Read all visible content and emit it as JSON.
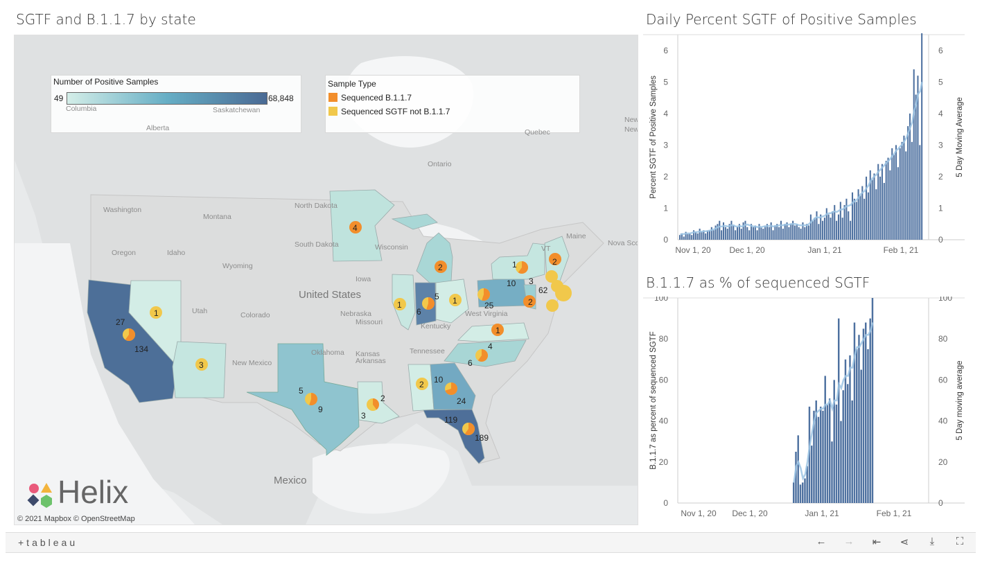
{
  "titles": {
    "map": "SGTF and B.1.1.7 by state",
    "chart1": "Daily Percent SGTF of Positive Samples",
    "chart2": "B.1.1.7 as % of sequenced SGTF"
  },
  "map": {
    "color_legend": {
      "title": "Number of Positive Samples",
      "min": "49",
      "max": "68,848",
      "color_min": "#d4eee8",
      "color_max": "#4a6a94"
    },
    "sample_legend": {
      "title": "Sample Type",
      "items": [
        {
          "label": "Sequenced B.1.1.7",
          "color": "#f28e2b"
        },
        {
          "label": "Sequenced SGTF not B.1.1.7",
          "color": "#f1c84b"
        }
      ]
    },
    "attribution": "© 2021 Mapbox  © OpenStreetMap",
    "brand": "Helix",
    "region_labels": [
      "Washington",
      "Oregon",
      "Idaho",
      "Montana",
      "Wyoming",
      "Utah",
      "Colorado",
      "North Dakota",
      "South Dakota",
      "Nebraska",
      "Iowa",
      "Missouri",
      "Kansas",
      "Oklahoma",
      "Arkansas",
      "Tennessee",
      "Kentucky",
      "West Virginia",
      "Wisconsin",
      "Ontario",
      "Quebec",
      "Alberta",
      "Saskatchewan",
      "Columbia",
      "Maine",
      "Nova Sco",
      "New",
      "Newfo",
      "VT",
      "New Mexico",
      "Mexico",
      "United States"
    ],
    "pie_labels": [
      {
        "text": "1"
      },
      {
        "text": "27"
      },
      {
        "text": "134"
      },
      {
        "text": "3"
      },
      {
        "text": "4"
      },
      {
        "text": "5"
      },
      {
        "text": "9"
      },
      {
        "text": "2"
      },
      {
        "text": "3"
      },
      {
        "text": "1"
      },
      {
        "text": "5"
      },
      {
        "text": "6"
      },
      {
        "text": "1"
      },
      {
        "text": "2"
      },
      {
        "text": "10"
      },
      {
        "text": "25"
      },
      {
        "text": "1"
      },
      {
        "text": "3"
      },
      {
        "text": "2"
      },
      {
        "text": "62"
      },
      {
        "text": "2"
      },
      {
        "text": "1"
      },
      {
        "text": "4"
      },
      {
        "text": "6"
      },
      {
        "text": "2"
      },
      {
        "text": "10"
      },
      {
        "text": "24"
      },
      {
        "text": "119"
      },
      {
        "text": "189"
      }
    ]
  },
  "chart_data": [
    {
      "type": "bar",
      "title": "Daily Percent SGTF of Positive Samples",
      "ylabel": "Percent SGTF of Positive Samples",
      "y2label": "5 Day Moving Average",
      "ylim": [
        0,
        6.5
      ],
      "yticks": [
        "0",
        "1",
        "2",
        "3",
        "4",
        "5",
        "6"
      ],
      "xticks": [
        "Nov 1, 20",
        "Dec 1, 20",
        "Jan 1, 21",
        "Feb 1, 21"
      ],
      "series": [
        {
          "name": "Percent SGTF of Positive Samples",
          "values": [
            0.15,
            0.2,
            0.1,
            0.25,
            0.18,
            0.2,
            0.15,
            0.3,
            0.25,
            0.2,
            0.35,
            0.25,
            0.3,
            0.2,
            0.28,
            0.3,
            0.4,
            0.3,
            0.45,
            0.5,
            0.6,
            0.3,
            0.55,
            0.4,
            0.35,
            0.5,
            0.6,
            0.45,
            0.3,
            0.4,
            0.5,
            0.35,
            0.55,
            0.6,
            0.4,
            0.3,
            0.5,
            0.4,
            0.45,
            0.3,
            0.5,
            0.4,
            0.35,
            0.45,
            0.5,
            0.4,
            0.55,
            0.3,
            0.45,
            0.5,
            0.4,
            0.6,
            0.35,
            0.5,
            0.55,
            0.4,
            0.5,
            0.6,
            0.45,
            0.5,
            0.4,
            0.35,
            0.55,
            0.4,
            0.5,
            0.45,
            0.8,
            0.6,
            0.7,
            0.9,
            0.5,
            0.8,
            0.6,
            0.7,
            1.0,
            0.8,
            0.7,
            0.9,
            1.1,
            0.6,
            0.8,
            1.2,
            0.7,
            1.1,
            1.3,
            0.9,
            0.6,
            1.5,
            1.3,
            1.2,
            1.6,
            1.4,
            1.7,
            1.3,
            2.0,
            1.5,
            2.2,
            1.9,
            2.1,
            1.6,
            2.4,
            2.0,
            2.4,
            1.8,
            2.5,
            2.6,
            2.2,
            2.9,
            2.7,
            3.0,
            2.3,
            2.9,
            3.1,
            3.3,
            2.8,
            3.6,
            4.0,
            3.1,
            5.4,
            4.6,
            5.2,
            3.0,
            6.6
          ]
        },
        {
          "name": "5 Day Moving Average",
          "values": [
            0.17,
            0.18,
            0.18,
            0.2,
            0.2,
            0.2,
            0.22,
            0.24,
            0.24,
            0.25,
            0.26,
            0.26,
            0.27,
            0.27,
            0.28,
            0.29,
            0.31,
            0.33,
            0.36,
            0.4,
            0.42,
            0.42,
            0.44,
            0.44,
            0.42,
            0.44,
            0.46,
            0.46,
            0.42,
            0.42,
            0.44,
            0.42,
            0.44,
            0.48,
            0.48,
            0.46,
            0.44,
            0.42,
            0.42,
            0.4,
            0.42,
            0.4,
            0.42,
            0.42,
            0.44,
            0.44,
            0.44,
            0.42,
            0.44,
            0.44,
            0.46,
            0.46,
            0.46,
            0.48,
            0.48,
            0.48,
            0.5,
            0.5,
            0.5,
            0.48,
            0.46,
            0.46,
            0.46,
            0.46,
            0.46,
            0.5,
            0.56,
            0.62,
            0.68,
            0.72,
            0.7,
            0.72,
            0.74,
            0.76,
            0.82,
            0.84,
            0.84,
            0.88,
            0.9,
            0.88,
            0.92,
            0.96,
            0.96,
            1.02,
            1.06,
            1.08,
            1.1,
            1.18,
            1.22,
            1.26,
            1.34,
            1.44,
            1.5,
            1.54,
            1.64,
            1.72,
            1.86,
            1.94,
            2.02,
            2.06,
            2.16,
            2.22,
            2.3,
            2.36,
            2.44,
            2.5,
            2.56,
            2.66,
            2.72,
            2.84,
            2.88,
            2.96,
            3.02,
            3.12,
            3.22,
            3.38,
            3.56,
            3.72,
            4.08,
            4.3,
            4.62,
            4.7,
            5.0
          ]
        }
      ]
    },
    {
      "type": "bar",
      "title": "B.1.1.7 as % of sequenced SGTF",
      "ylabel": "B.1.1.7 as percent of sequenced  SGTF",
      "y2label": "5 Day moving average",
      "ylim": [
        0,
        100
      ],
      "yticks": [
        "0",
        "20",
        "40",
        "60",
        "80",
        "100"
      ],
      "xticks": [
        "Nov 1, 20",
        "Dec 1, 20",
        "Jan 1, 21",
        "Feb 1, 21"
      ],
      "series": [
        {
          "name": "B.1.1.7 as percent of sequenced SGTF",
          "values": [
            10,
            25,
            33,
            9,
            10,
            12,
            18,
            47,
            28,
            45,
            50,
            42,
            47,
            45,
            62,
            48,
            51,
            30,
            60,
            48,
            90,
            40,
            55,
            70,
            58,
            72,
            50,
            88,
            75,
            82,
            65,
            85,
            88,
            75,
            90,
            100
          ]
        },
        {
          "name": "5 Day moving average",
          "values": [
            10,
            18,
            20,
            17,
            12,
            14,
            20,
            28,
            34,
            40,
            44,
            45,
            46,
            46,
            48,
            48,
            50,
            46,
            50,
            50,
            58,
            56,
            60,
            62,
            62,
            66,
            66,
            72,
            76,
            76,
            78,
            80,
            82,
            82,
            84,
            88
          ]
        }
      ]
    }
  ],
  "toolbar": {
    "logo": "+tableau",
    "buttons": [
      {
        "icon": "undo-icon",
        "glyph": "←"
      },
      {
        "icon": "redo-icon",
        "glyph": "→"
      },
      {
        "icon": "revert-icon",
        "glyph": "⇤"
      },
      {
        "icon": "share-icon",
        "glyph": "⋖"
      },
      {
        "icon": "download-icon",
        "glyph": "⤓"
      },
      {
        "icon": "fullscreen-icon",
        "glyph": "⛶"
      }
    ]
  }
}
